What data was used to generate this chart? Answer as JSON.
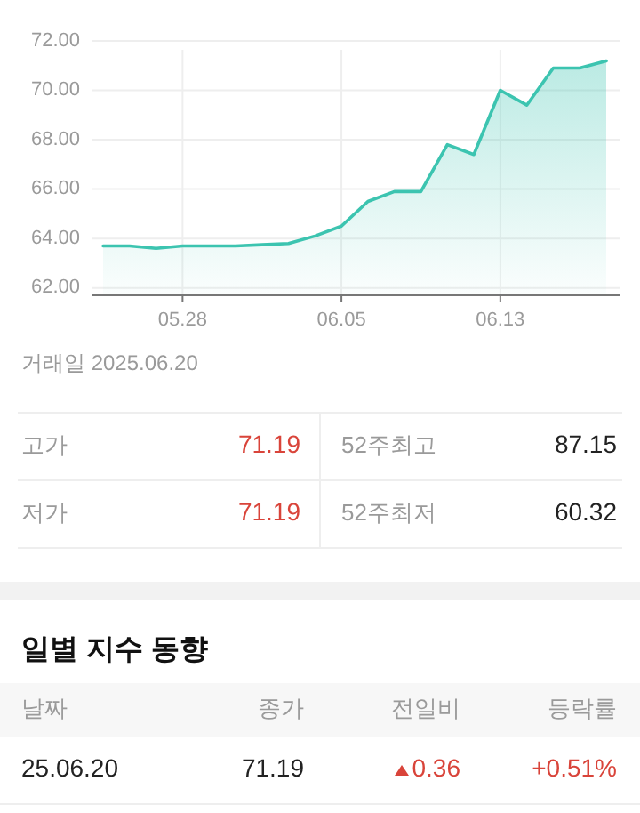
{
  "chart_data": {
    "type": "area",
    "categories": [
      null,
      null,
      null,
      "05.28",
      null,
      null,
      null,
      null,
      null,
      "06.05",
      null,
      null,
      null,
      null,
      null,
      "06.13",
      null,
      null,
      null,
      null
    ],
    "series": [
      {
        "color": "#3cc4b0",
        "values": [
          63.7,
          63.7,
          63.6,
          63.7,
          63.7,
          63.7,
          63.75,
          63.8,
          64.1,
          64.5,
          65.5,
          65.9,
          65.9,
          67.8,
          67.4,
          70.0,
          69.4,
          70.9,
          70.9,
          71.19
        ]
      }
    ],
    "ylim": [
      61.7,
      72
    ],
    "yticks": [
      {
        "value": 62,
        "label": "62.00"
      },
      {
        "value": 64,
        "label": "64.00"
      },
      {
        "value": 66,
        "label": "66.00"
      },
      {
        "value": 68,
        "label": "68.00"
      },
      {
        "value": 70,
        "label": "70.00"
      },
      {
        "value": 72,
        "label": "72.00"
      }
    ],
    "grid": true,
    "annotations": [
      "거래일 2025.06.20",
      "고가",
      "71.19",
      "52주최고",
      "87.15",
      "저가",
      "71.19",
      "52주최저",
      "60.32",
      "일별 지수 동향",
      "날짜",
      "종가",
      "전일비",
      "등락률",
      "25.06.20",
      "71.19",
      "0.36",
      "+0.51%"
    ]
  }
}
